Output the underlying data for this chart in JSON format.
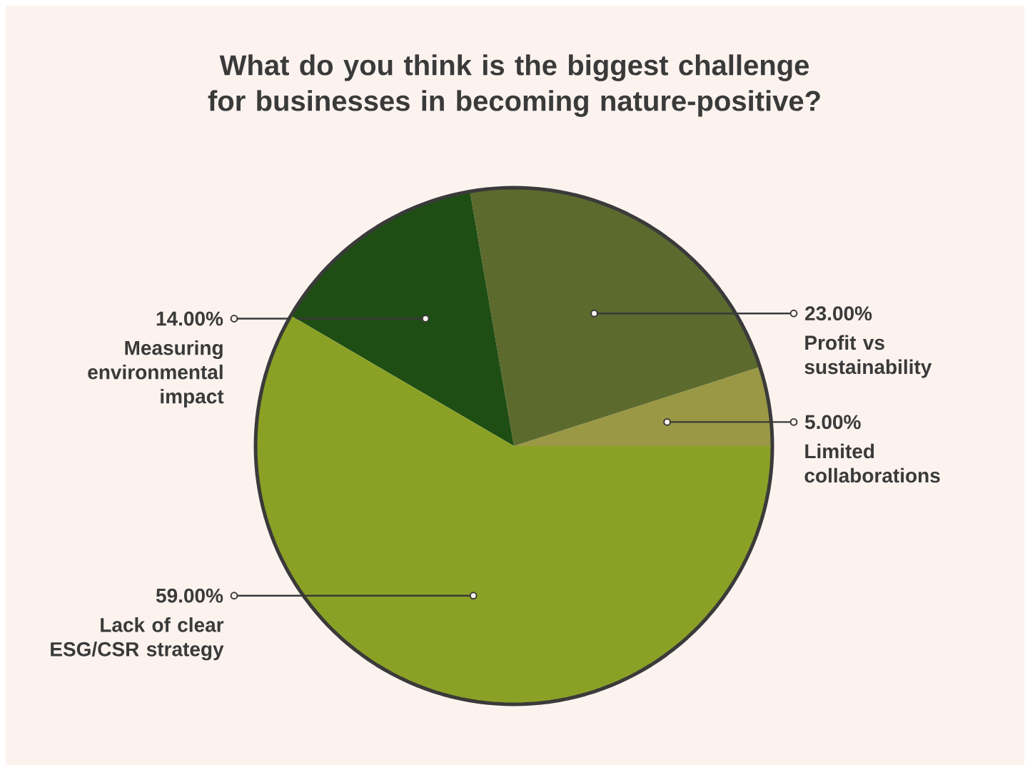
{
  "chart_data": {
    "type": "pie",
    "title": "What do you think is the biggest challenge for businesses in becoming nature-positive?",
    "categories": [
      "Limited collaborations",
      "Profit vs sustainability",
      "Measuring environmental impact",
      "Lack of clear ESG/CSR strategy"
    ],
    "values": [
      5,
      23,
      14,
      59
    ],
    "value_labels": [
      "5.00%",
      "23.00%",
      "14.00%",
      "59.00%"
    ],
    "colors": [
      "#9a9845",
      "#5d6a2e",
      "#1e4e13",
      "#8ba126"
    ]
  }
}
